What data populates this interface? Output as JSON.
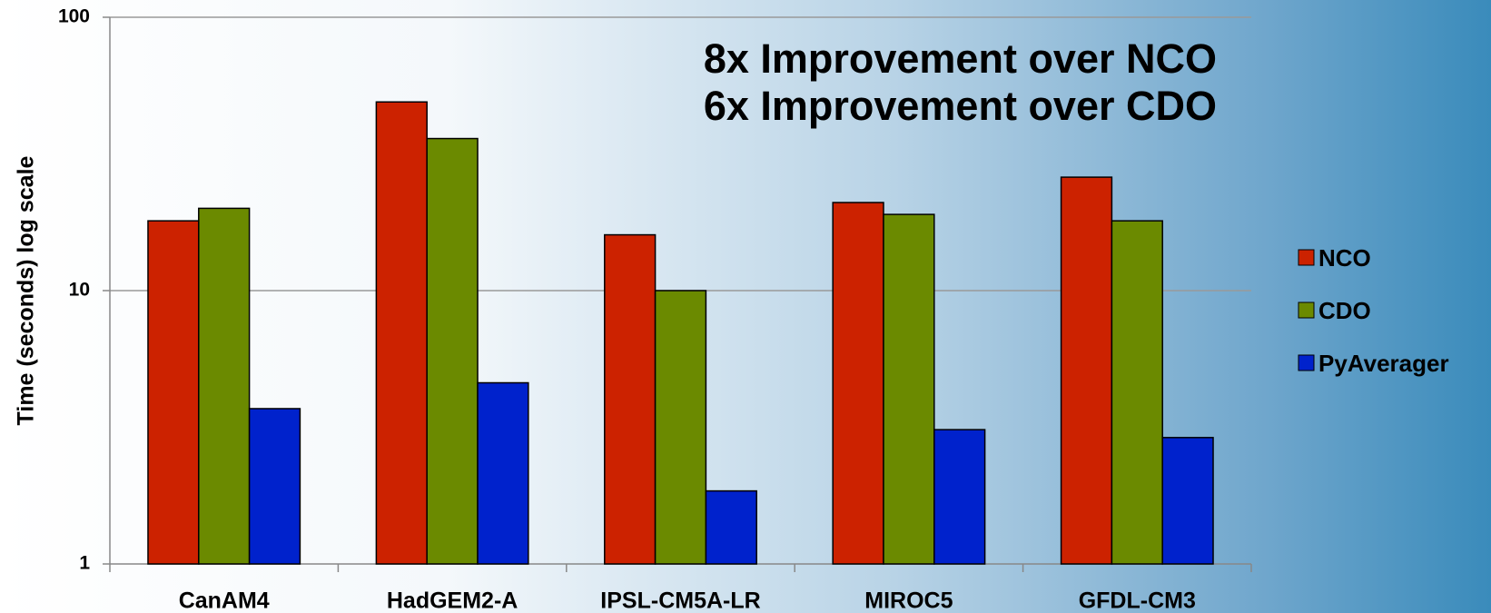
{
  "chart_data": {
    "type": "bar",
    "ylabel": "Time (seconds) log scale",
    "annotations": [
      "8x Improvement over NCO",
      "6x Improvement over CDO"
    ],
    "categories": [
      "CanAM4",
      "HadGEM2-A",
      "IPSL-CM5A-LR",
      "MIROC5",
      "GFDL-CM3"
    ],
    "series": [
      {
        "name": "NCO",
        "color": "#cc2200",
        "values": [
          18,
          49,
          16,
          21,
          26
        ]
      },
      {
        "name": "CDO",
        "color": "#6b8a00",
        "values": [
          20,
          36,
          10,
          19,
          18
        ]
      },
      {
        "name": "PyAverager",
        "color": "#0022cc",
        "values": [
          3.7,
          4.6,
          1.85,
          3.1,
          2.9
        ]
      }
    ],
    "ylim": [
      1,
      100
    ],
    "yticks": [
      1,
      10,
      100
    ],
    "log_scale": true,
    "grid": true,
    "legend": "right"
  }
}
